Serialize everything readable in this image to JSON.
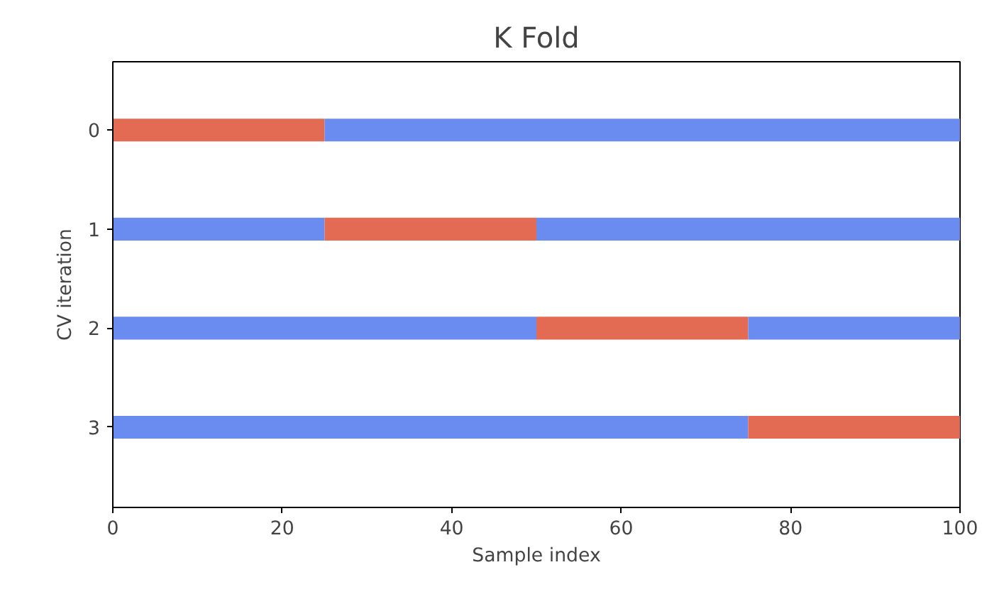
{
  "chart_data": {
    "type": "bar",
    "title": "K Fold",
    "xlabel": "Sample index",
    "ylabel": "CV iteration",
    "orientation": "horizontal",
    "stacked": true,
    "categories": [
      "0",
      "1",
      "2",
      "3"
    ],
    "series": [
      {
        "color": "#6a8bef",
        "values": [
          0,
          25,
          50,
          75
        ]
      },
      {
        "color": "#e36a53",
        "values": [
          25,
          25,
          25,
          25
        ]
      },
      {
        "color": "#6a8bef",
        "values": [
          75,
          50,
          25,
          0
        ]
      }
    ],
    "xlim": [
      0,
      100
    ],
    "xticks": [
      0,
      20,
      40,
      60,
      80,
      100
    ]
  }
}
